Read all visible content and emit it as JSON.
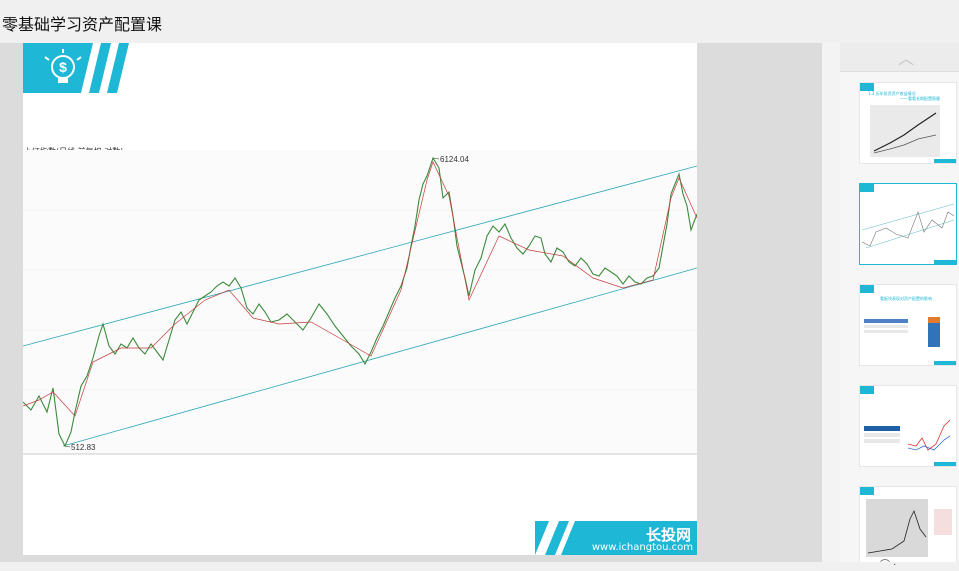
{
  "window": {
    "title": "零基础学习资产配置课"
  },
  "slide": {
    "chart_label": "上证指数(日线,前复权,对数)",
    "peak_label": "6124.04",
    "low_label": "512.83",
    "brand_name": "长投网",
    "brand_url": "www.ichangtou.com",
    "accent_color": "#1fb7d6",
    "header_icon": "dollar-lightbulb-icon"
  },
  "thumbnails": {
    "scroll_up_icon": "chevron-up-icon",
    "items": [
      {
        "title": "1.3 历年投资资产收益情况",
        "subtitle": "——看看长期配置稳健",
        "selected": false
      },
      {
        "title": "",
        "subtitle": "",
        "selected": true
      },
      {
        "title": "看板块表现对资产配置的影响",
        "subtitle": "",
        "selected": false
      },
      {
        "title": "",
        "subtitle": "",
        "selected": false
      },
      {
        "title": "",
        "subtitle": "",
        "selected": false
      }
    ]
  }
}
